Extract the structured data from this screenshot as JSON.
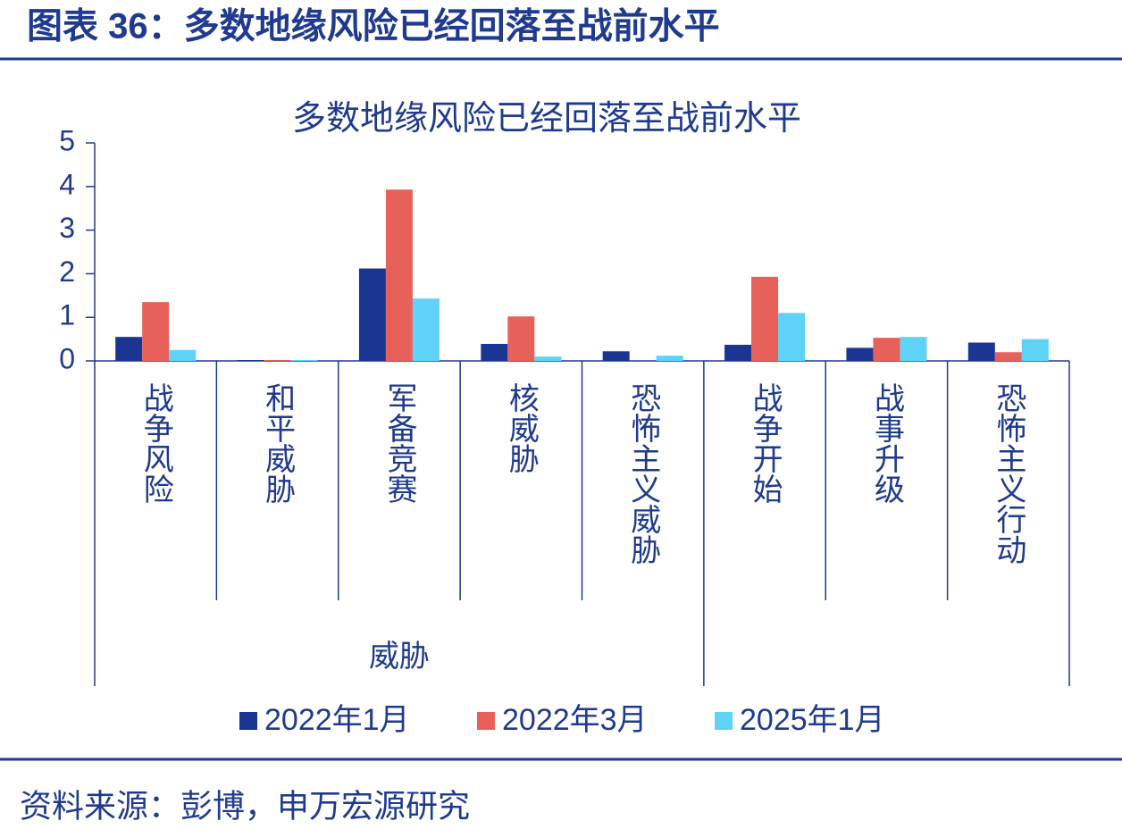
{
  "header": {
    "title": "图表 36：多数地缘风险已经回落至战前水平"
  },
  "chart_data": {
    "type": "bar",
    "title": "多数地缘风险已经回落至战前水平",
    "categories": [
      "战争风险",
      "和平威胁",
      "军备竞赛",
      "核威胁",
      "恐怖主义威胁",
      "战争开始",
      "战事升级",
      "恐怖主义行动"
    ],
    "category_groups": [
      "威胁",
      "威胁",
      "威胁",
      "威胁",
      "威胁",
      null,
      null,
      null
    ],
    "series": [
      {
        "name": "2022年1月",
        "color": "#1b3592",
        "values": [
          0.55,
          0.02,
          2.12,
          0.39,
          0.22,
          0.37,
          0.3,
          0.42
        ]
      },
      {
        "name": "2022年3月",
        "color": "#e8605a",
        "values": [
          1.35,
          0.02,
          3.93,
          1.02,
          0,
          1.93,
          0.53,
          0.2
        ]
      },
      {
        "name": "2025年1月",
        "color": "#5fd3f7",
        "values": [
          0.25,
          0.02,
          1.43,
          0.1,
          0.12,
          1.1,
          0.55,
          0.5
        ]
      }
    ],
    "ylim": [
      0,
      5
    ],
    "yticks": [
      0,
      1,
      2,
      3,
      4,
      5
    ],
    "legend": "bottom"
  },
  "footer": {
    "source": "资料来源：彭博，申万宏源研究"
  }
}
